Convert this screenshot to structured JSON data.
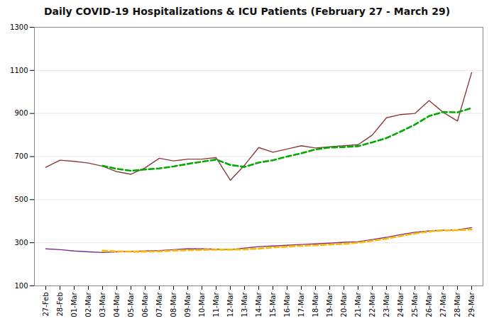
{
  "chart_data": {
    "type": "line",
    "title": "Daily COVID-19 Hospitalizations & ICU Patients (February 27 - March 29)",
    "x": [
      "27-Feb",
      "28-Feb",
      "01-Mar",
      "02-Mar",
      "03-Mar",
      "04-Mar",
      "05-Mar",
      "06-Mar",
      "07-Mar",
      "08-Mar",
      "09-Mar",
      "10-Mar",
      "11-Mar",
      "12-Mar",
      "13-Mar",
      "14-Mar",
      "15-Mar",
      "16-Mar",
      "17-Mar",
      "18-Mar",
      "19-Mar",
      "20-Mar",
      "21-Mar",
      "22-Mar",
      "23-Mar",
      "24-Mar",
      "25-Mar",
      "26-Mar",
      "27-Mar",
      "28-Mar",
      "29-Mar"
    ],
    "series": [
      {
        "color": "#8B3A3A",
        "line_style": "solid",
        "values": [
          650,
          683,
          678,
          670,
          655,
          630,
          618,
          648,
          692,
          680,
          688,
          688,
          695,
          590,
          660,
          742,
          720,
          735,
          750,
          740,
          745,
          750,
          755,
          800,
          880,
          895,
          900,
          960,
          905,
          865,
          1090
        ]
      },
      {
        "color": "#00AA00",
        "line_style": "dashed",
        "values": [
          null,
          null,
          null,
          null,
          657,
          643,
          634,
          640,
          645,
          654,
          666,
          676,
          686,
          661,
          652,
          672,
          683,
          700,
          715,
          733,
          742,
          744,
          748,
          766,
          786,
          816,
          848,
          888,
          907,
          905,
          925
        ]
      },
      {
        "color": "#7B2D8B",
        "line_style": "solid",
        "values": [
          272,
          268,
          262,
          258,
          255,
          258,
          260,
          262,
          264,
          268,
          272,
          272,
          270,
          268,
          275,
          282,
          285,
          288,
          292,
          295,
          298,
          302,
          305,
          315,
          325,
          338,
          348,
          355,
          358,
          360,
          370
        ]
      },
      {
        "color": "#FFB800",
        "line_style": "dashed",
        "values": [
          null,
          null,
          null,
          null,
          263,
          260,
          259,
          259,
          260,
          264,
          265,
          267,
          268,
          268,
          269,
          273,
          278,
          282,
          286,
          288,
          292,
          295,
          300,
          309,
          319,
          331,
          343,
          352,
          357,
          358,
          362
        ]
      }
    ],
    "ylim": [
      100,
      1300
    ],
    "yticks": [
      100,
      300,
      500,
      700,
      900,
      1100,
      1300
    ],
    "grid": true
  }
}
